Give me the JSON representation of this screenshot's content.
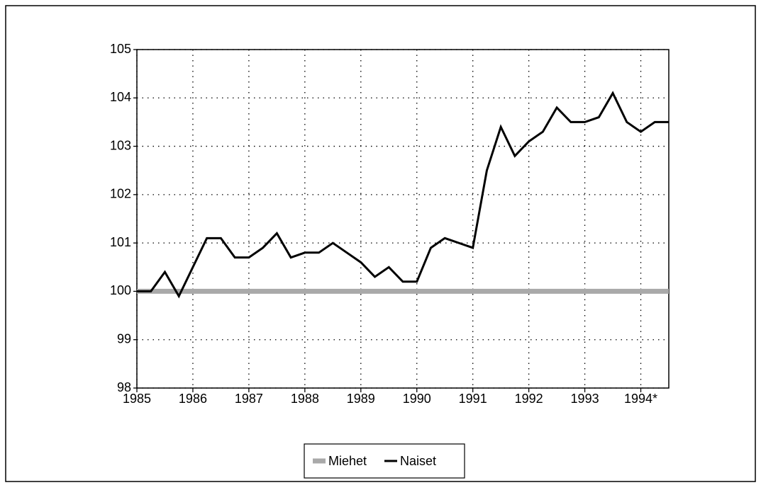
{
  "chart_data": {
    "type": "line",
    "x": [
      1985,
      1985.25,
      1985.5,
      1985.75,
      1986,
      1986.25,
      1986.5,
      1986.75,
      1987,
      1987.25,
      1987.5,
      1987.75,
      1988,
      1988.25,
      1988.5,
      1988.75,
      1989,
      1989.25,
      1989.5,
      1989.75,
      1990,
      1990.25,
      1990.5,
      1990.75,
      1991,
      1991.25,
      1991.5,
      1991.75,
      1992,
      1992.25,
      1992.5,
      1992.75,
      1993,
      1993.25,
      1993.5,
      1993.75,
      1994,
      1994.25,
      1994.5
    ],
    "series": [
      {
        "name": "Miehet",
        "color": "#a9a9a9",
        "values": [
          100,
          100,
          100,
          100,
          100,
          100,
          100,
          100,
          100,
          100,
          100,
          100,
          100,
          100,
          100,
          100,
          100,
          100,
          100,
          100,
          100,
          100,
          100,
          100,
          100,
          100,
          100,
          100,
          100,
          100,
          100,
          100,
          100,
          100,
          100,
          100,
          100,
          100,
          100
        ]
      },
      {
        "name": "Naiset",
        "color": "#000000",
        "values": [
          100,
          100.0,
          100.4,
          99.9,
          100.5,
          101.1,
          101.1,
          100.7,
          100.7,
          100.9,
          101.2,
          100.7,
          100.8,
          100.8,
          101.0,
          100.8,
          100.6,
          100.3,
          100.5,
          100.2,
          100.2,
          100.9,
          101.1,
          101.0,
          100.9,
          102.5,
          103.4,
          102.8,
          103.1,
          103.3,
          103.8,
          103.5,
          103.5,
          103.6,
          104.1,
          103.5,
          103.3,
          103.5,
          103.5
        ]
      }
    ],
    "xlim": [
      1985,
      1994.5
    ],
    "xticks": [
      1985,
      1986,
      1987,
      1988,
      1989,
      1990,
      1991,
      1992,
      1993,
      {
        "value": 1994,
        "label": "1994*"
      }
    ],
    "ylim": [
      98,
      105
    ],
    "yticks": [
      98,
      99,
      100,
      101,
      102,
      103,
      104,
      105
    ],
    "grid": true,
    "legend": "bottom"
  }
}
